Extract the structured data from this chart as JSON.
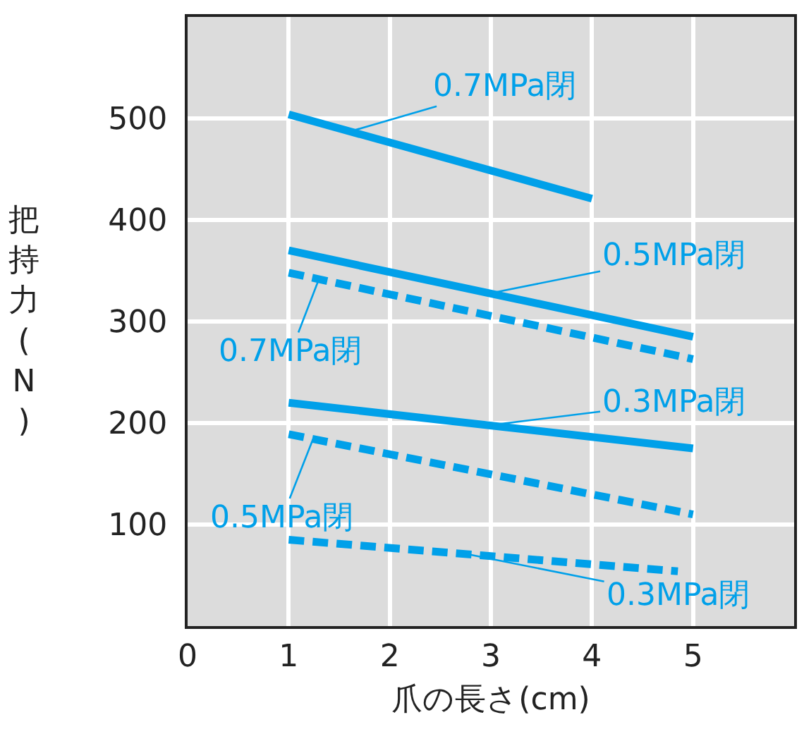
{
  "chart_data": {
    "type": "line",
    "xlabel": "爪の長さ(cm)",
    "ylabel": "把持力(N)",
    "xlim": [
      0,
      6
    ],
    "xticks": [
      0,
      1,
      2,
      3,
      4,
      5
    ],
    "ylim": [
      0,
      600
    ],
    "yticks": [
      100,
      200,
      300,
      400,
      500
    ],
    "grid": true,
    "marker": "none",
    "series": [
      {
        "color": "#00a0e9",
        "x": [
          1,
          4
        ],
        "values": [
          504,
          421
        ],
        "line_style": "solid"
      },
      {
        "color": "#00a0e9",
        "x": [
          1,
          5
        ],
        "values": [
          370,
          285
        ],
        "line_style": "solid"
      },
      {
        "color": "#00a0e9",
        "x": [
          1,
          5
        ],
        "values": [
          348,
          263
        ],
        "line_style": "dashed"
      },
      {
        "color": "#00a0e9",
        "x": [
          1,
          5
        ],
        "values": [
          220,
          175
        ],
        "line_style": "solid"
      },
      {
        "color": "#00a0e9",
        "x": [
          1,
          5
        ],
        "values": [
          189,
          110
        ],
        "line_style": "dashed"
      },
      {
        "color": "#00a0e9",
        "x": [
          1,
          4.85
        ],
        "values": [
          85,
          54
        ],
        "line_style": "dashed"
      }
    ],
    "annotations": [
      {
        "text": "0.7MPa閉",
        "x": 1.6,
        "y": 487
      },
      {
        "text": "0.5MPa閉",
        "x": 3,
        "y": 328
      },
      {
        "text": "0.7MPa閉",
        "x": 1.3,
        "y": 342
      },
      {
        "text": "0.3MPa閉",
        "x": 3,
        "y": 198
      },
      {
        "text": "0.5MPa閉",
        "x": 1.24,
        "y": 184
      },
      {
        "text": "0.3MPa閉",
        "x": 2.76,
        "y": 71
      }
    ]
  }
}
